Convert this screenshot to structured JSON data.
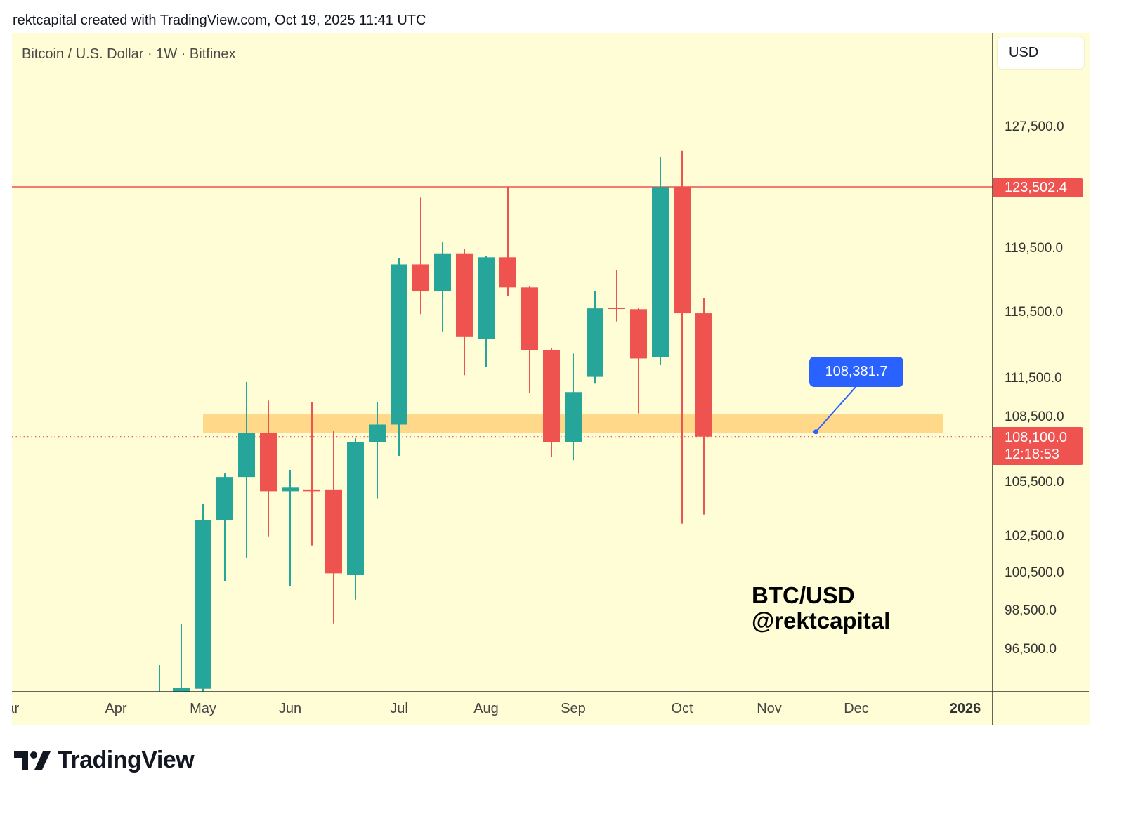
{
  "header": {
    "credit": "rektcapital created with TradingView.com, Oct 19, 2025 11:41 UTC"
  },
  "pane": {
    "symbol": "Bitcoin / U.S. Dollar · 1W · Bitfinex",
    "currency": "USD"
  },
  "watermark": {
    "line1": "BTC/USD",
    "line2": "@rektcapital"
  },
  "footer": {
    "brand": "TradingView",
    "logo_icon": "tradingview-logo-icon"
  },
  "colors": {
    "background": "#FEFDD5",
    "up": "#26A69A",
    "down": "#EF5350",
    "zone": "#FFD88A",
    "callout": "#2962FF"
  },
  "chart_data": {
    "type": "candlestick",
    "title": "Bitcoin / U.S. Dollar · 1W · Bitfinex",
    "interval": "1W",
    "y_scale": "log",
    "ylim": [
      93000,
      132000
    ],
    "grid": false,
    "y_ticks": [
      "127,500.0",
      "119,500.0",
      "115,500.0",
      "111,500.0",
      "108,500.0",
      "105,500.0",
      "102,500.0",
      "100,500.0",
      "98,500.0",
      "96,500.0"
    ],
    "y_tick_values": [
      127500,
      119500,
      115500,
      111500,
      108500,
      105500,
      102500,
      100500,
      98500,
      96500
    ],
    "x_ticks": [
      {
        "label": "Mar",
        "date": "2025-03-03"
      },
      {
        "label": "Apr",
        "date": "2025-04-07"
      },
      {
        "label": "May",
        "date": "2025-05-05"
      },
      {
        "label": "Jun",
        "date": "2025-06-02"
      },
      {
        "label": "Jul",
        "date": "2025-07-07"
      },
      {
        "label": "Aug",
        "date": "2025-08-04"
      },
      {
        "label": "Sep",
        "date": "2025-09-01"
      },
      {
        "label": "Oct",
        "date": "2025-10-06"
      },
      {
        "label": "Nov",
        "date": "2025-11-03"
      },
      {
        "label": "Dec",
        "date": "2025-12-01"
      },
      {
        "label": "2026",
        "date": "2026-01-05",
        "bold": true
      }
    ],
    "candles": [
      {
        "date": "2025-04-21",
        "o": 93500,
        "h": 95700,
        "l": 92000,
        "c": 94200
      },
      {
        "date": "2025-04-28",
        "o": 93800,
        "h": 97800,
        "l": 93000,
        "c": 94550
      },
      {
        "date": "2025-05-05",
        "o": 94500,
        "h": 104300,
        "l": 94300,
        "c": 103400
      },
      {
        "date": "2025-05-12",
        "o": 103400,
        "h": 106000,
        "l": 100100,
        "c": 105800
      },
      {
        "date": "2025-05-19",
        "o": 105800,
        "h": 111300,
        "l": 101350,
        "c": 108300
      },
      {
        "date": "2025-05-26",
        "o": 108300,
        "h": 110200,
        "l": 102500,
        "c": 105000
      },
      {
        "date": "2025-06-02",
        "o": 105000,
        "h": 106200,
        "l": 99800,
        "c": 105200
      },
      {
        "date": "2025-06-09",
        "o": 105100,
        "h": 110100,
        "l": 102000,
        "c": 105000
      },
      {
        "date": "2025-06-16",
        "o": 105100,
        "h": 108450,
        "l": 97850,
        "c": 100500
      },
      {
        "date": "2025-06-23",
        "o": 100400,
        "h": 108000,
        "l": 99100,
        "c": 107800
      },
      {
        "date": "2025-06-30",
        "o": 107800,
        "h": 110100,
        "l": 104600,
        "c": 108800
      },
      {
        "date": "2025-07-07",
        "o": 108800,
        "h": 118900,
        "l": 107000,
        "c": 118500
      },
      {
        "date": "2025-07-14",
        "o": 118500,
        "h": 122800,
        "l": 115400,
        "c": 116800
      },
      {
        "date": "2025-07-21",
        "o": 116800,
        "h": 119900,
        "l": 114300,
        "c": 119200
      },
      {
        "date": "2025-07-28",
        "o": 119200,
        "h": 119500,
        "l": 111700,
        "c": 114000
      },
      {
        "date": "2025-08-04",
        "o": 113900,
        "h": 119050,
        "l": 112200,
        "c": 118950
      },
      {
        "date": "2025-08-11",
        "o": 118950,
        "h": 123500,
        "l": 116500,
        "c": 117050
      },
      {
        "date": "2025-08-18",
        "o": 117050,
        "h": 117150,
        "l": 110650,
        "c": 113200
      },
      {
        "date": "2025-08-25",
        "o": 113200,
        "h": 113350,
        "l": 106950,
        "c": 107800
      },
      {
        "date": "2025-09-01",
        "o": 107800,
        "h": 113000,
        "l": 106750,
        "c": 110700
      },
      {
        "date": "2025-09-08",
        "o": 111600,
        "h": 116800,
        "l": 111200,
        "c": 115750
      },
      {
        "date": "2025-09-15",
        "o": 115800,
        "h": 118150,
        "l": 114950,
        "c": 115750
      },
      {
        "date": "2025-09-22",
        "o": 115700,
        "h": 115800,
        "l": 109450,
        "c": 112700
      },
      {
        "date": "2025-09-29",
        "o": 112800,
        "h": 125500,
        "l": 112300,
        "c": 123500
      },
      {
        "date": "2025-10-06",
        "o": 123500,
        "h": 125900,
        "l": 103200,
        "c": 115450
      },
      {
        "date": "2025-10-13",
        "o": 115450,
        "h": 116400,
        "l": 103700,
        "c": 108100
      }
    ],
    "horizontal_line": {
      "price": 123502.4,
      "label": "123,502.4",
      "color": "#EF5350"
    },
    "last_price": {
      "price": 108100,
      "label": "108,100.0",
      "countdown": "12:18:53",
      "color": "#EF5350"
    },
    "zone": {
      "from_date": "2025-05-05",
      "to_date": "2025-12-29",
      "low": 108320,
      "high": 109390,
      "color": "#FFD88A"
    },
    "callout": {
      "price": 108381.7,
      "label": "108,381.7",
      "date": "2025-11-18",
      "color": "#2962FF"
    }
  }
}
